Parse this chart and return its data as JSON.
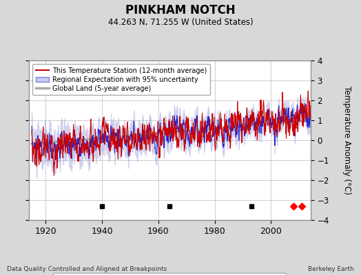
{
  "title": "PINKHAM NOTCH",
  "subtitle": "44.263 N, 71.255 W (United States)",
  "ylabel": "Temperature Anomaly (°C)",
  "xlabel_left": "Data Quality Controlled and Aligned at Breakpoints",
  "xlabel_right": "Berkeley Earth",
  "year_start": 1915,
  "year_end": 2013,
  "ylim": [
    -4,
    4
  ],
  "yticks": [
    -4,
    -3,
    -2,
    -1,
    0,
    1,
    2,
    3,
    4
  ],
  "xticks": [
    1920,
    1940,
    1960,
    1980,
    2000
  ],
  "bg_color": "#d8d8d8",
  "plot_bg_color": "#ffffff",
  "grid_color": "#bbbbbb",
  "empirical_breaks": [
    1940,
    1964,
    1993
  ],
  "station_moves": [
    2008,
    2011
  ],
  "red_line_color": "#cc0000",
  "blue_line_color": "#2222cc",
  "blue_fill_color": "#9999dd",
  "gray_line_color": "#aaaaaa",
  "marker_y": -3.3
}
